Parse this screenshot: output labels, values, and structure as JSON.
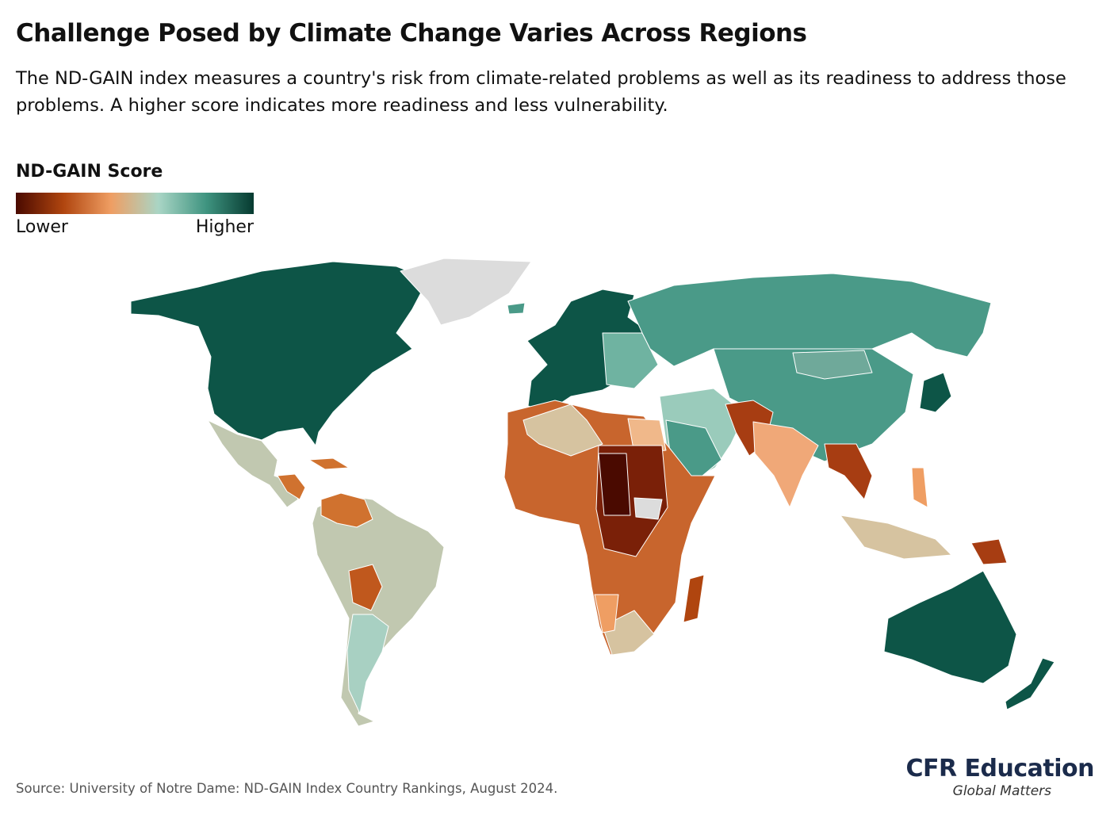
{
  "header": {
    "title": "Challenge Posed by Climate Change Varies Across Regions",
    "subtitle": "The ND-GAIN index measures a country's risk from climate-related problems as well as its readiness to address those problems. A higher score indicates more readiness and less vulnerability."
  },
  "legend": {
    "title": "ND-GAIN Score",
    "low": "Lower",
    "high": "Higher"
  },
  "footer": {
    "source": "Source: University of Notre Dame: ND-GAIN Index Country Rankings, August 2024.",
    "brand": "CFR Education",
    "tagline": "Global Matters"
  }
}
